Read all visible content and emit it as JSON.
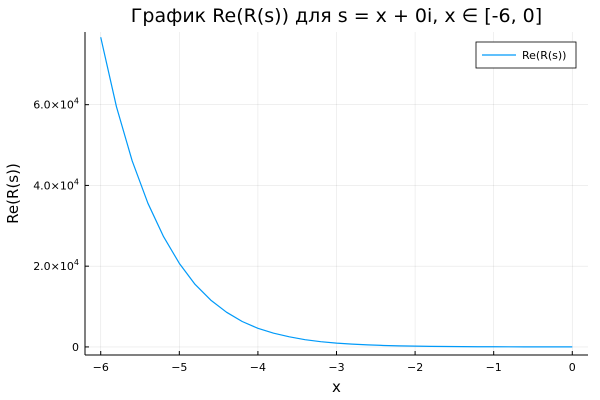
{
  "chart_data": {
    "type": "line",
    "title": "График Re(R(s)) для s = x + 0i, x ∈ [-6, 0]",
    "xlabel": "x",
    "ylabel": "Re(R(s))",
    "xlim": [
      -6.2,
      0.2
    ],
    "ylim": [
      -2000,
      78000
    ],
    "grid": true,
    "legend_position": "top-right",
    "x_ticks": [
      {
        "value": -6,
        "label": "−6"
      },
      {
        "value": -5,
        "label": "−5"
      },
      {
        "value": -4,
        "label": "−4"
      },
      {
        "value": -3,
        "label": "−3"
      },
      {
        "value": -2,
        "label": "−2"
      },
      {
        "value": -1,
        "label": "−1"
      },
      {
        "value": 0,
        "label": "0"
      }
    ],
    "y_ticks": [
      {
        "value": 0,
        "mantissa": "0",
        "exponent": ""
      },
      {
        "value": 20000,
        "mantissa": "2.0×10",
        "exponent": "4"
      },
      {
        "value": 40000,
        "mantissa": "4.0×10",
        "exponent": "4"
      },
      {
        "value": 60000,
        "mantissa": "6.0×10",
        "exponent": "4"
      }
    ],
    "series": [
      {
        "name": "Re(R(s))",
        "color": "#009af9",
        "x": [
          -6.0,
          -5.8,
          -5.6,
          -5.4,
          -5.2,
          -5.0,
          -4.8,
          -4.6,
          -4.4,
          -4.2,
          -4.0,
          -3.8,
          -3.6,
          -3.4,
          -3.2,
          -3.0,
          -2.8,
          -2.6,
          -2.4,
          -2.2,
          -2.0,
          -1.8,
          -1.6,
          -1.4,
          -1.2,
          -1.0,
          -0.8,
          -0.6,
          -0.4,
          -0.2,
          0.0
        ],
        "y": [
          76700,
          59500,
          46100,
          35600,
          27300,
          20700,
          15500,
          11600,
          8600,
          6300,
          4600,
          3400,
          2500,
          1800,
          1300,
          950,
          700,
          500,
          360,
          260,
          190,
          140,
          100,
          70,
          50,
          35,
          25,
          18,
          12,
          8,
          5
        ]
      }
    ]
  }
}
